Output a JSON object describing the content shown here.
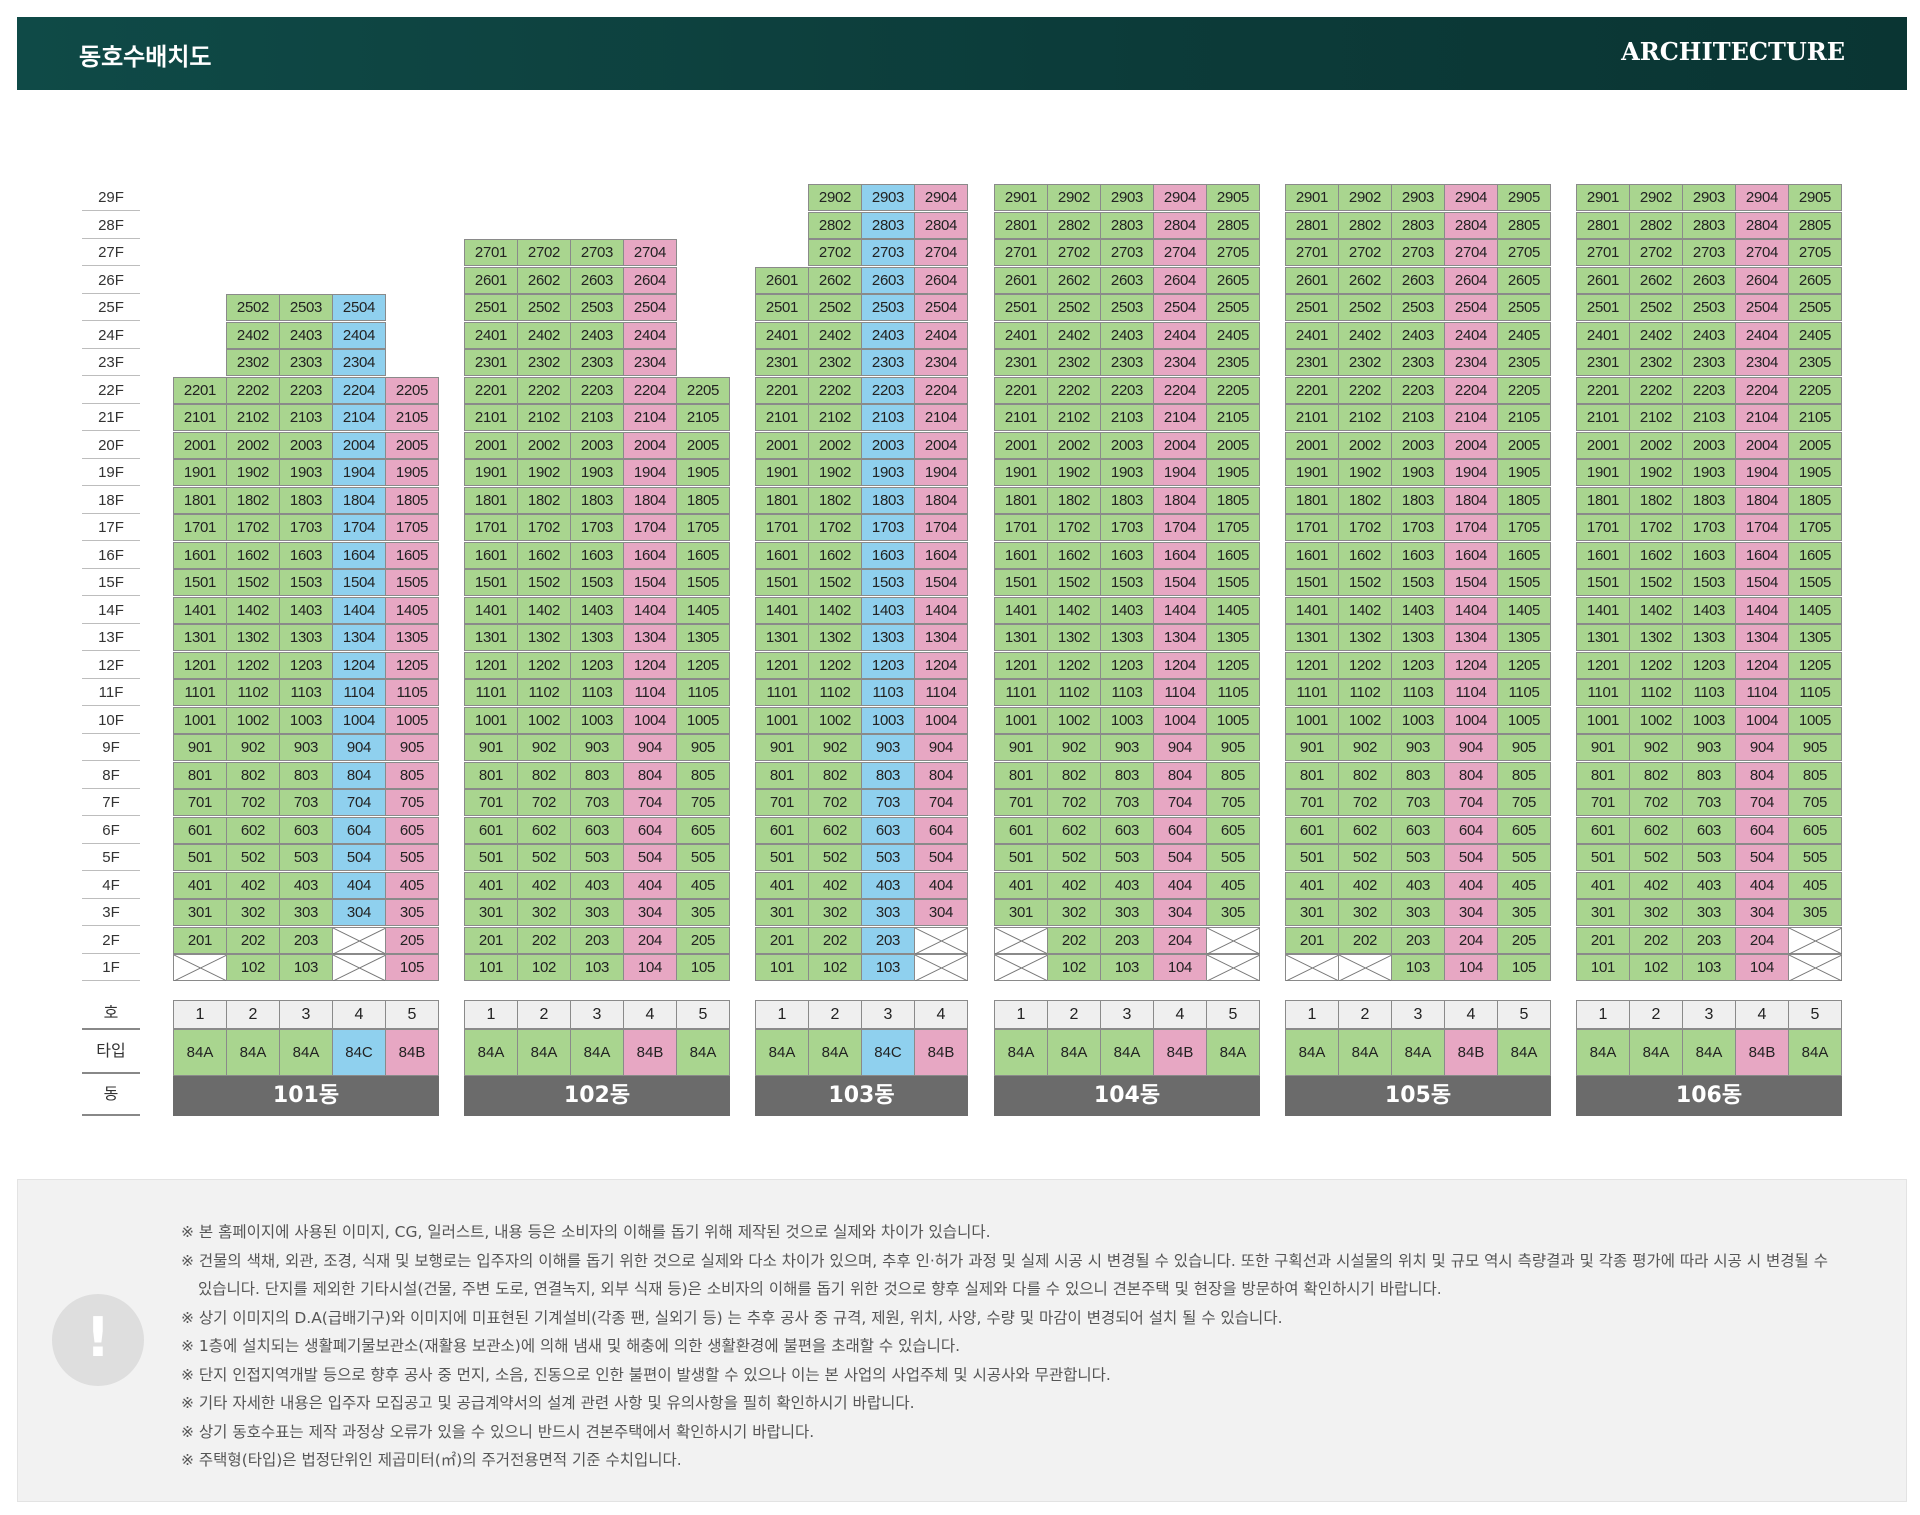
{
  "header": {
    "title": "동호수배치도",
    "right": "ARCHITECTURE"
  },
  "floors": [
    "29F",
    "28F",
    "27F",
    "26F",
    "25F",
    "24F",
    "23F",
    "22F",
    "21F",
    "20F",
    "19F",
    "18F",
    "17F",
    "16F",
    "15F",
    "14F",
    "13F",
    "12F",
    "11F",
    "10F",
    "9F",
    "8F",
    "7F",
    "6F",
    "5F",
    "4F",
    "3F",
    "2F",
    "1F"
  ],
  "labels": {
    "ho": "호",
    "type": "타입",
    "dong": "동"
  },
  "colors": {
    "green": "#a9d58f",
    "pink": "#e7a7c3",
    "blue": "#8fd0ee",
    "header": "#0f4a47",
    "dong_bar": "#6b6b6b"
  },
  "buildings": [
    {
      "name": "101동",
      "types": [
        "84A",
        "84A",
        "84A",
        "84C",
        "84B"
      ],
      "top": [
        22,
        25,
        25,
        25,
        22
      ],
      "bottom": [
        2,
        1,
        1,
        3,
        1
      ],
      "missing": [
        "101",
        "204",
        "104"
      ]
    },
    {
      "name": "102동",
      "types": [
        "84A",
        "84A",
        "84A",
        "84B",
        "84A"
      ],
      "top": [
        27,
        27,
        27,
        27,
        22
      ],
      "bottom": [
        1,
        1,
        1,
        1,
        1
      ],
      "missing": []
    },
    {
      "name": "103동",
      "types": [
        "84A",
        "84A",
        "84C",
        "84B"
      ],
      "top": [
        26,
        29,
        29,
        29
      ],
      "bottom": [
        1,
        1,
        1,
        3
      ],
      "missing": [
        "204",
        "104"
      ]
    },
    {
      "name": "104동",
      "types": [
        "84A",
        "84A",
        "84A",
        "84B",
        "84A"
      ],
      "top": [
        29,
        29,
        29,
        29,
        29
      ],
      "bottom": [
        3,
        1,
        1,
        1,
        3
      ],
      "missing": [
        "201",
        "101",
        "205",
        "105"
      ]
    },
    {
      "name": "105동",
      "types": [
        "84A",
        "84A",
        "84A",
        "84B",
        "84A"
      ],
      "top": [
        29,
        29,
        29,
        29,
        29
      ],
      "bottom": [
        2,
        2,
        1,
        1,
        1
      ],
      "missing": [
        "101",
        "102"
      ]
    },
    {
      "name": "106동",
      "types": [
        "84A",
        "84A",
        "84A",
        "84B",
        "84A"
      ],
      "top": [
        29,
        29,
        29,
        29,
        29
      ],
      "bottom": [
        1,
        1,
        1,
        1,
        3
      ],
      "missing": [
        "205",
        "105"
      ]
    }
  ],
  "notes": [
    "※ 본 홈페이지에 사용된 이미지, CG, 일러스트, 내용 등은 소비자의 이해를 돕기 위해 제작된 것으로 실제와 차이가 있습니다.",
    "※ 건물의 색채, 외관, 조경, 식재 및 보행로는 입주자의 이해를 돕기 위한 것으로 실제와 다소 차이가 있으며, 추후 인·허가 과정 및 실제 시공 시 변경될 수 있습니다. 또한 구획선과 시설물의 위치 및 규모 역시 측량결과 및 각종 평가에 따라 시공 시 변경될 수 있습니다. 단지를 제외한 기타시설(건물, 주변 도로, 연결녹지, 외부 식재 등)은 소비자의 이해를 돕기 위한 것으로 향후 실제와 다를 수 있으니 견본주택 및 현장을 방문하여 확인하시기 바랍니다.",
    "※ 상기 이미지의 D.A(급배기구)와 이미지에 미표현된 기계설비(각종 팬, 실외기 등) 는 추후 공사 중 규격, 제원, 위치, 사양, 수량 및 마감이 변경되어 설치 될 수 있습니다.",
    "※ 1층에 설치되는 생활폐기물보관소(재활용 보관소)에 의해 냄새 및 해충에 의한 생활환경에 불편을 초래할 수 있습니다.",
    "※ 단지 인접지역개발 등으로 향후 공사 중 먼지, 소음, 진동으로 인한 불편이 발생할 수 있으나 이는 본 사업의 사업주체 및 시공사와 무관합니다.",
    "※ 기타 자세한 내용은 입주자 모집공고 및 공급계약서의 설계 관련 사항 및 유의사항을 필히 확인하시기 바랍니다.",
    "※ 상기 동호수표는 제작 과정상 오류가 있을 수 있으니 반드시 견본주택에서 확인하시기 바랍니다.",
    "※ 주택형(타입)은 법정단위인 제곱미터(㎡)의 주거전용면적 기준 수치입니다."
  ]
}
